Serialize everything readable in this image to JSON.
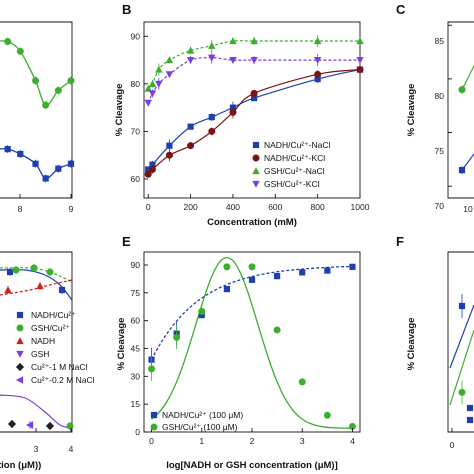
{
  "colors": {
    "blue": "#1f3fb0",
    "green": "#3cae2e",
    "red": "#cc2020",
    "purple": "#7a3fe0",
    "maroon": "#7a1414",
    "black": "#222222"
  },
  "chart_data": [
    {
      "panel": "left-top (cropped)",
      "type": "scatter",
      "x_ticks": [
        "8",
        "9"
      ],
      "series": [
        {
          "color": "green",
          "x": [
            7.5,
            7.75,
            8.0,
            8.3,
            8.5,
            8.75,
            9.0
          ],
          "y": [
            84.0,
            84.0,
            83.0,
            80.0,
            77.5,
            79.0,
            80.0
          ]
        },
        {
          "color": "blue",
          "x": [
            7.5,
            7.75,
            8.0,
            8.3,
            8.5,
            8.75,
            9.0
          ],
          "y": [
            73.0,
            73.0,
            72.5,
            71.5,
            70.0,
            71.0,
            71.5
          ]
        }
      ]
    },
    {
      "panel": "B",
      "type": "scatter",
      "xlabel": "Concentration (mM)",
      "ylabel": "% Cleavage",
      "xlim": [
        -20,
        1000
      ],
      "ylim": [
        56,
        93
      ],
      "x_ticks": [
        "0",
        "200",
        "400",
        "600",
        "800",
        "1000"
      ],
      "y_ticks": [
        "60",
        "70",
        "80",
        "90"
      ],
      "series": [
        {
          "name": "NADH/Cu²⁺-NaCl",
          "color": "blue",
          "marker": "square",
          "x": [
            0,
            20,
            100,
            200,
            300,
            400,
            500,
            800,
            1000
          ],
          "y": [
            62,
            63,
            67,
            71,
            73,
            75,
            77,
            81,
            83
          ]
        },
        {
          "name": "NADH/Cu²⁺-KCl",
          "color": "maroon",
          "marker": "circle",
          "x": [
            0,
            20,
            100,
            200,
            300,
            400,
            500,
            800,
            1000
          ],
          "y": [
            61,
            62,
            65,
            67,
            70,
            74,
            78,
            82,
            83
          ]
        },
        {
          "name": "GSH/Cu²⁺-NaCl",
          "color": "green",
          "marker": "triangle-up",
          "x": [
            0,
            20,
            50,
            100,
            200,
            300,
            400,
            500,
            800,
            1000
          ],
          "y": [
            79,
            80,
            83,
            85,
            87,
            88,
            89,
            89,
            89,
            89
          ]
        },
        {
          "name": "GSH/Cu²⁺-KCl",
          "color": "purple",
          "marker": "triangle-down",
          "x": [
            0,
            20,
            50,
            100,
            200,
            300,
            400,
            500,
            800,
            1000
          ],
          "y": [
            76,
            78,
            80,
            82,
            85,
            85.5,
            85,
            85,
            85,
            85
          ]
        }
      ]
    },
    {
      "panel": "C (cropped)",
      "type": "scatter",
      "ylabel": "% Cleavage",
      "y_ticks": [
        "70",
        "75",
        "80",
        "85"
      ],
      "x_ticks": [
        "10"
      ],
      "series": [
        {
          "color": "green",
          "x": [
            7,
            11,
            14
          ],
          "y": [
            79,
            82,
            85
          ]
        },
        {
          "color": "blue",
          "x": [
            7,
            11,
            14
          ],
          "y": [
            71.5,
            73.5,
            75
          ]
        }
      ]
    },
    {
      "panel": "left-bottom (cropped)",
      "type": "scatter",
      "xlabel": "tion (μM))",
      "x_ticks": [
        "3",
        "4"
      ],
      "series": [
        {
          "name": "NADH/Cu²⁺",
          "color": "blue",
          "marker": "square"
        },
        {
          "name": "GSH/Cu²⁺",
          "color": "green",
          "marker": "circle"
        },
        {
          "name": "NADH",
          "color": "red",
          "marker": "triangle-up"
        },
        {
          "name": "GSH",
          "color": "purple",
          "marker": "triangle-down"
        },
        {
          "name": "Cu²⁺-1 M NaCl",
          "color": "black",
          "marker": "diamond"
        },
        {
          "name": "Cu²⁺-0.2 M NaCl",
          "color": "purple",
          "marker": "triangle-left"
        }
      ]
    },
    {
      "panel": "E",
      "type": "scatter",
      "xlabel": "log[NADH or GSH concentration (μM)]",
      "ylabel": "% Cleavage",
      "xlim": [
        -0.15,
        4.15
      ],
      "ylim": [
        0,
        97
      ],
      "x_ticks": [
        "0",
        "1",
        "2",
        "3",
        "4"
      ],
      "y_ticks": [
        "0",
        "15",
        "30",
        "45",
        "60",
        "75",
        "90"
      ],
      "series": [
        {
          "name": "NADH/Cu²⁺ (100 μM)",
          "color": "blue",
          "marker": "square",
          "x": [
            0,
            0.5,
            1.0,
            1.5,
            2.0,
            2.5,
            3.0,
            3.5,
            4.0
          ],
          "y": [
            39,
            53,
            63,
            77,
            82,
            84,
            86,
            87,
            89
          ]
        },
        {
          "name": "GSH/Cu²⁺ (100 μM)",
          "color": "green",
          "marker": "circle",
          "x": [
            0,
            0.5,
            1.0,
            1.5,
            2.0,
            2.5,
            3.0,
            3.5,
            4.0
          ],
          "y": [
            34,
            51,
            65,
            89,
            89,
            55,
            27,
            9,
            3
          ]
        }
      ]
    },
    {
      "panel": "F (cropped)",
      "type": "scatter",
      "ylabel": "% Cleavage",
      "x_ticks": [
        "0",
        "1"
      ],
      "series": [
        {
          "color": "blue",
          "x": [
            0,
            1
          ],
          "y": [
            65,
            67
          ]
        },
        {
          "color": "green",
          "x": [
            0,
            1
          ],
          "y": [
            41,
            60
          ]
        }
      ]
    }
  ]
}
